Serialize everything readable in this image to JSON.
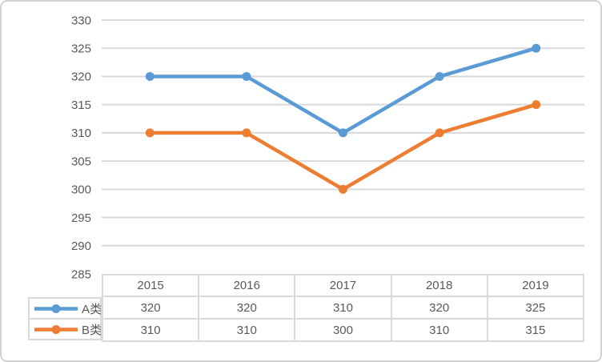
{
  "chart_data": {
    "type": "line",
    "title": "",
    "xlabel": "",
    "ylabel": "",
    "categories": [
      "2015",
      "2016",
      "2017",
      "2018",
      "2019"
    ],
    "series": [
      {
        "name": "A类",
        "color": "#5B9BD5",
        "values": [
          320,
          320,
          310,
          320,
          325
        ]
      },
      {
        "name": "B类",
        "color": "#ED7D31",
        "values": [
          310,
          310,
          300,
          310,
          315
        ]
      }
    ],
    "ylim": [
      285,
      330
    ],
    "ytick_step": 5,
    "y_ticks": [
      330,
      325,
      320,
      315,
      310,
      305,
      300,
      295,
      290,
      285
    ],
    "grid": "horizontal-only",
    "gridline_color": "#d9d9d9",
    "marker": "circle",
    "legend_position": "left-of-data-table",
    "data_table_shown": true
  },
  "styles": {
    "text_color": "#595959",
    "table_border_color": "#d9d9d9",
    "frame_border_color": "#d2d2d2",
    "background": "#ffffff"
  }
}
